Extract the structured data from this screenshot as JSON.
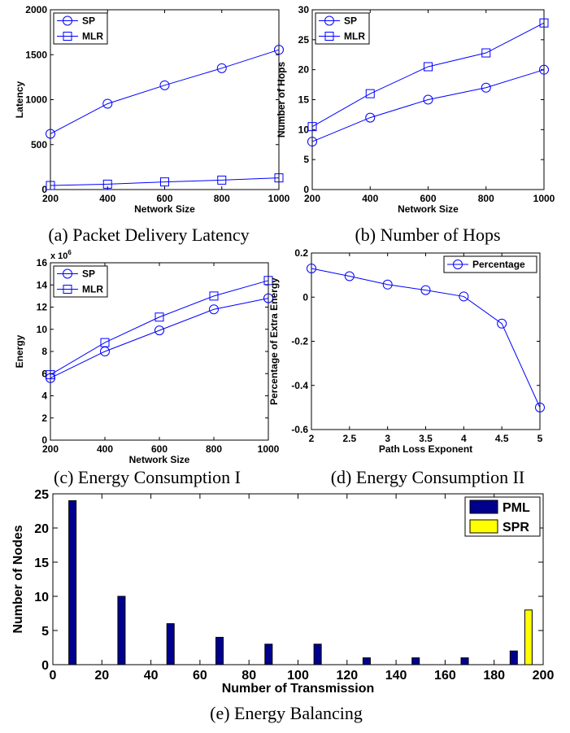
{
  "chart_data": [
    {
      "id": "a",
      "type": "line",
      "caption": "(a) Packet Delivery Latency",
      "xlabel": "Network Size",
      "ylabel": "Latency",
      "x": [
        200,
        400,
        600,
        800,
        1000
      ],
      "xlim": [
        200,
        1000
      ],
      "ylim": [
        0,
        2000
      ],
      "xticks": [
        200,
        400,
        600,
        800,
        1000
      ],
      "yticks": [
        0,
        500,
        1000,
        1500,
        2000
      ],
      "series": [
        {
          "name": "SP",
          "marker": "circle",
          "values": [
            620,
            955,
            1160,
            1350,
            1555
          ]
        },
        {
          "name": "MLR",
          "marker": "square",
          "values": [
            45,
            60,
            85,
            105,
            130
          ]
        }
      ],
      "legend": "top-left",
      "color": "#0000ff"
    },
    {
      "id": "b",
      "type": "line",
      "caption": "(b) Number of Hops",
      "xlabel": "Network Size",
      "ylabel": "Number of Hops",
      "x": [
        200,
        400,
        600,
        800,
        1000
      ],
      "xlim": [
        200,
        1000
      ],
      "ylim": [
        0,
        30
      ],
      "xticks": [
        200,
        400,
        600,
        800,
        1000
      ],
      "yticks": [
        0,
        5,
        10,
        15,
        20,
        25,
        30
      ],
      "series": [
        {
          "name": "SP",
          "marker": "circle",
          "values": [
            8,
            12,
            15,
            17,
            20
          ]
        },
        {
          "name": "MLR",
          "marker": "square",
          "values": [
            10.5,
            16,
            20.5,
            22.8,
            27.8
          ]
        }
      ],
      "legend": "top-left",
      "color": "#0000ff"
    },
    {
      "id": "c",
      "type": "line",
      "caption": "(c) Energy Consumption I",
      "xlabel": "Network Size",
      "ylabel": "Energy",
      "multiplier": "x 10",
      "multiplier_exp": "6",
      "x": [
        200,
        400,
        600,
        800,
        1000
      ],
      "xlim": [
        200,
        1000
      ],
      "ylim": [
        0,
        16
      ],
      "xticks": [
        200,
        400,
        600,
        800,
        1000
      ],
      "yticks": [
        0,
        2,
        4,
        6,
        8,
        10,
        12,
        14,
        16
      ],
      "series": [
        {
          "name": "SP",
          "marker": "circle",
          "values": [
            5.6,
            8.0,
            9.9,
            11.8,
            12.8
          ]
        },
        {
          "name": "MLR",
          "marker": "square",
          "values": [
            5.9,
            8.8,
            11.1,
            13.0,
            14.4
          ]
        }
      ],
      "legend": "top-left",
      "color": "#0000ff"
    },
    {
      "id": "d",
      "type": "line",
      "caption": "(d) Energy Consumption II",
      "xlabel": "Path Loss Exponent",
      "ylabel": "Percentage of Extra Energy",
      "x": [
        2,
        2.5,
        3,
        3.5,
        4,
        4.5,
        5
      ],
      "xlim": [
        2,
        5
      ],
      "ylim": [
        -0.6,
        0.2
      ],
      "xticks": [
        2,
        2.5,
        3,
        3.5,
        4,
        4.5,
        5
      ],
      "yticks": [
        -0.6,
        -0.4,
        -0.2,
        0,
        0.2
      ],
      "series": [
        {
          "name": "Percentage",
          "marker": "circle",
          "values": [
            0.13,
            0.095,
            0.057,
            0.032,
            0.003,
            -0.12,
            -0.5
          ]
        }
      ],
      "legend": "top-right",
      "color": "#0000ff"
    },
    {
      "id": "e",
      "type": "bar",
      "caption": "(e) Energy Balancing",
      "xlabel": "Number of Transmission",
      "ylabel": "Number of Nodes",
      "xlim": [
        0,
        200
      ],
      "ylim": [
        0,
        25
      ],
      "xticks": [
        0,
        20,
        40,
        60,
        80,
        100,
        120,
        140,
        160,
        180,
        200
      ],
      "yticks": [
        0,
        5,
        10,
        15,
        20,
        25
      ],
      "series": [
        {
          "name": "PML",
          "color": "#00008f",
          "x": [
            8,
            28,
            48,
            68,
            88,
            108,
            128,
            148,
            168,
            188
          ],
          "values": [
            24,
            10,
            6,
            4,
            3,
            3,
            1,
            1,
            1,
            2
          ]
        },
        {
          "name": "SPR",
          "color": "#ffff00",
          "x": [
            194
          ],
          "values": [
            8
          ]
        }
      ],
      "legend": "top-right"
    }
  ]
}
